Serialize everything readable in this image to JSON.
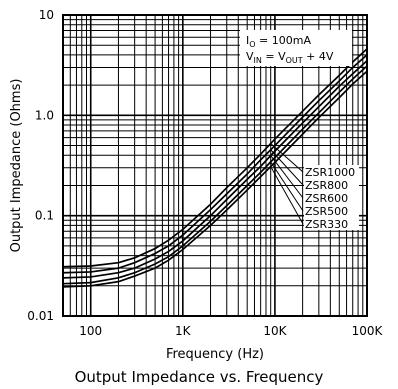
{
  "chart_data": {
    "type": "line",
    "title": "Output Impedance vs. Frequency",
    "xlabel": "Frequency (Hz)",
    "ylabel": "Output Impedance (Ohms)",
    "x_scale": "log",
    "y_scale": "log",
    "xlim": [
      50,
      100000
    ],
    "ylim": [
      0.01,
      10
    ],
    "x_ticks": [
      {
        "value": 100,
        "label": "100"
      },
      {
        "value": 1000,
        "label": "1K"
      },
      {
        "value": 10000,
        "label": "10K"
      },
      {
        "value": 100000,
        "label": "100K"
      }
    ],
    "y_ticks": [
      {
        "value": 0.01,
        "label": "0.01"
      },
      {
        "value": 0.1,
        "label": "0.1"
      },
      {
        "value": 1,
        "label": "1.0"
      },
      {
        "value": 10,
        "label": "10"
      }
    ],
    "grid": true,
    "conditions": {
      "line1": {
        "sym": "I",
        "sub": "O",
        "rest": " = 100mA"
      },
      "line2": {
        "sym": "V",
        "sub": "IN",
        "eq": " = V",
        "sub2": "OUT",
        "rest": " + 4V"
      }
    },
    "series": [
      {
        "name": "ZSR1000",
        "x": [
          50,
          100,
          200,
          300,
          500,
          700,
          1000,
          2000,
          3000,
          5000,
          7000,
          10000,
          20000,
          30000,
          50000,
          70000,
          100000
        ],
        "y": [
          0.031,
          0.0315,
          0.034,
          0.038,
          0.047,
          0.057,
          0.073,
          0.13,
          0.19,
          0.3,
          0.41,
          0.58,
          1.1,
          1.6,
          2.5,
          3.4,
          4.6
        ]
      },
      {
        "name": "ZSR800",
        "x": [
          50,
          100,
          200,
          300,
          500,
          700,
          1000,
          2000,
          3000,
          5000,
          7000,
          10000,
          20000,
          30000,
          50000,
          70000,
          100000
        ],
        "y": [
          0.027,
          0.0275,
          0.03,
          0.034,
          0.042,
          0.05,
          0.064,
          0.115,
          0.165,
          0.26,
          0.36,
          0.5,
          0.96,
          1.4,
          2.2,
          3.0,
          4.0
        ]
      },
      {
        "name": "ZSR600",
        "x": [
          50,
          100,
          200,
          300,
          500,
          700,
          1000,
          2000,
          3000,
          5000,
          7000,
          10000,
          20000,
          30000,
          50000,
          70000,
          100000
        ],
        "y": [
          0.024,
          0.0245,
          0.027,
          0.03,
          0.037,
          0.044,
          0.056,
          0.1,
          0.145,
          0.23,
          0.31,
          0.44,
          0.84,
          1.22,
          1.95,
          2.6,
          3.5
        ]
      },
      {
        "name": "ZSR500",
        "x": [
          50,
          100,
          200,
          300,
          500,
          700,
          1000,
          2000,
          3000,
          5000,
          7000,
          10000,
          20000,
          30000,
          50000,
          70000,
          100000
        ],
        "y": [
          0.021,
          0.0215,
          0.024,
          0.027,
          0.033,
          0.039,
          0.05,
          0.088,
          0.126,
          0.2,
          0.27,
          0.38,
          0.73,
          1.06,
          1.7,
          2.3,
          3.1
        ]
      },
      {
        "name": "ZSR330",
        "x": [
          50,
          100,
          200,
          300,
          500,
          700,
          1000,
          2000,
          3000,
          5000,
          7000,
          10000,
          20000,
          30000,
          50000,
          70000,
          100000
        ],
        "y": [
          0.0195,
          0.02,
          0.022,
          0.025,
          0.03,
          0.036,
          0.046,
          0.08,
          0.114,
          0.18,
          0.245,
          0.34,
          0.65,
          0.95,
          1.5,
          2.05,
          2.75
        ]
      }
    ],
    "legend": "right"
  }
}
